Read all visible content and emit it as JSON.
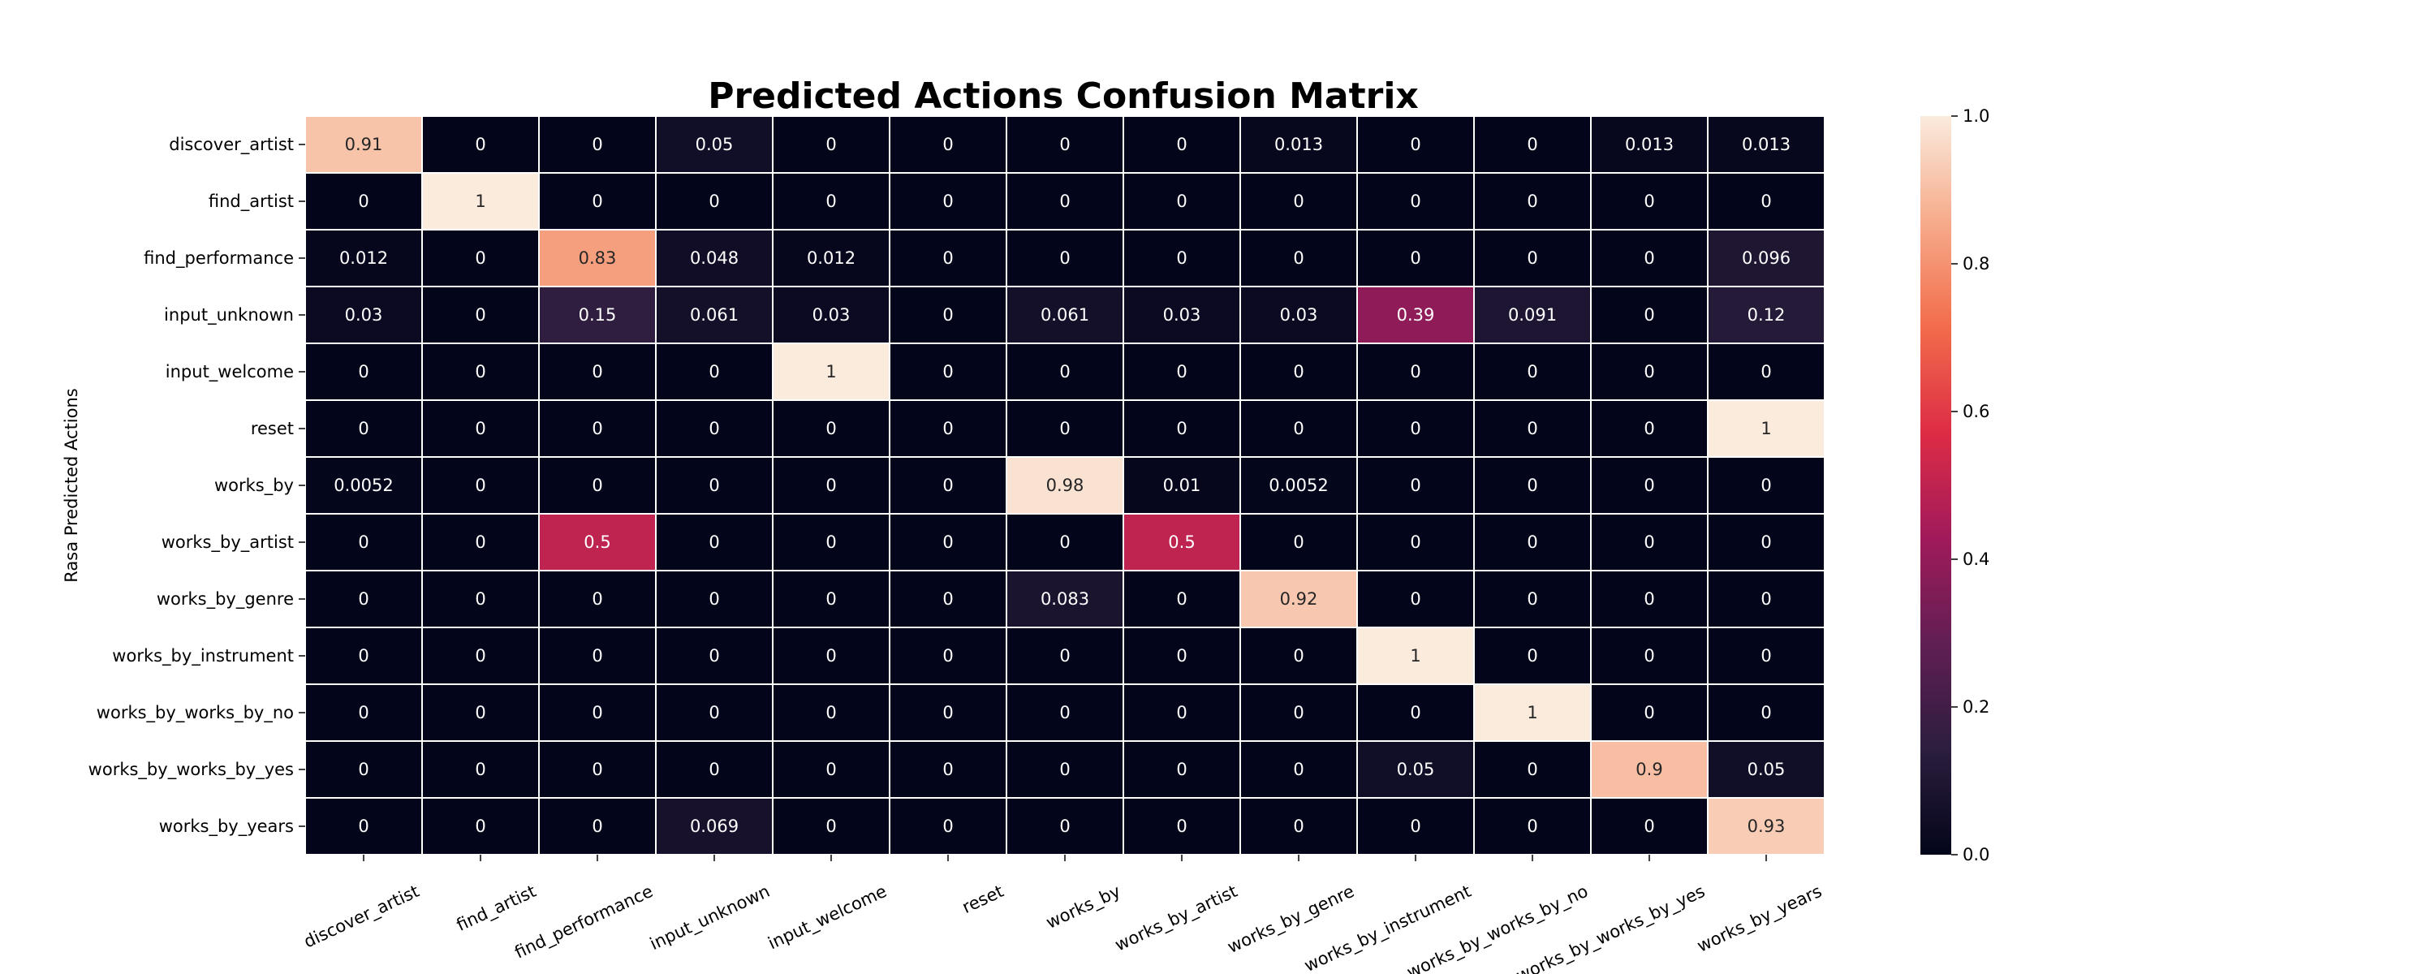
{
  "chart_data": {
    "type": "heatmap",
    "title": "Predicted Actions Confusion Matrix",
    "ylabel": "Rasa Predicted Actions",
    "xlabel": "",
    "rows": [
      "discover_artist",
      "find_artist",
      "find_performance",
      "input_unknown",
      "input_welcome",
      "reset",
      "works_by",
      "works_by_artist",
      "works_by_genre",
      "works_by_instrument",
      "works_by_works_by_no",
      "works_by_works_by_yes",
      "works_by_years"
    ],
    "columns": [
      "discover_artist",
      "find_artist",
      "find_performance",
      "input_unknown",
      "input_welcome",
      "reset",
      "works_by",
      "works_by_artist",
      "works_by_genre",
      "works_by_instrument",
      "works_by_works_by_no",
      "works_by_works_by_yes",
      "works_by_years"
    ],
    "values": [
      [
        0.91,
        0,
        0,
        0.05,
        0,
        0,
        0,
        0,
        0.013,
        0,
        0,
        0.013,
        0.013
      ],
      [
        0,
        1,
        0,
        0,
        0,
        0,
        0,
        0,
        0,
        0,
        0,
        0,
        0
      ],
      [
        0.012,
        0,
        0.83,
        0.048,
        0.012,
        0,
        0,
        0,
        0,
        0,
        0,
        0,
        0.096
      ],
      [
        0.03,
        0,
        0.15,
        0.061,
        0.03,
        0,
        0.061,
        0.03,
        0.03,
        0.39,
        0.091,
        0,
        0.12
      ],
      [
        0,
        0,
        0,
        0,
        1,
        0,
        0,
        0,
        0,
        0,
        0,
        0,
        0
      ],
      [
        0,
        0,
        0,
        0,
        0,
        0,
        0,
        0,
        0,
        0,
        0,
        0,
        1
      ],
      [
        0.0052,
        0,
        0,
        0,
        0,
        0,
        0.98,
        0.01,
        0.0052,
        0,
        0,
        0,
        0
      ],
      [
        0,
        0,
        0.5,
        0,
        0,
        0,
        0,
        0.5,
        0,
        0,
        0,
        0,
        0
      ],
      [
        0,
        0,
        0,
        0,
        0,
        0,
        0.083,
        0,
        0.92,
        0,
        0,
        0,
        0
      ],
      [
        0,
        0,
        0,
        0,
        0,
        0,
        0,
        0,
        0,
        1,
        0,
        0,
        0
      ],
      [
        0,
        0,
        0,
        0,
        0,
        0,
        0,
        0,
        0,
        0,
        1,
        0,
        0
      ],
      [
        0,
        0,
        0,
        0,
        0,
        0,
        0,
        0,
        0,
        0.05,
        0,
        0.9,
        0.05
      ],
      [
        0,
        0,
        0,
        0.069,
        0,
        0,
        0,
        0,
        0,
        0,
        0,
        0,
        0.93
      ]
    ],
    "vmin": 0,
    "vmax": 1,
    "colormap": "rocket",
    "colorbar_ticks": [
      "0.0",
      "0.2",
      "0.4",
      "0.6",
      "0.8",
      "1.0"
    ],
    "colorbar_tick_values": [
      0,
      0.2,
      0.4,
      0.6,
      0.8,
      1.0
    ],
    "colors": {
      "grid_line": "#ffffff",
      "light_text": "#ffffff",
      "dark_text": "#262626",
      "scale": [
        "#03051a",
        "#2c1e3e",
        "#611f53",
        "#a11a5b",
        "#dd2c45",
        "#f26c4b",
        "#f6ab8b",
        "#faebdd"
      ]
    }
  }
}
